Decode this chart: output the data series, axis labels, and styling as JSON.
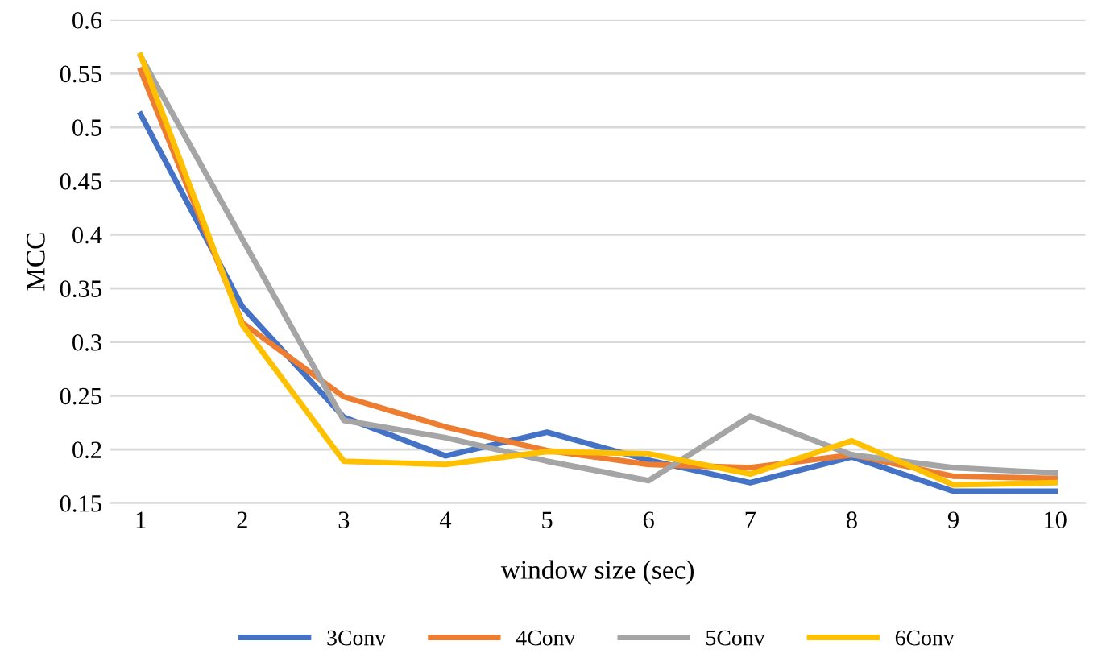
{
  "chart_data": {
    "type": "line",
    "xlabel": "window size (sec)",
    "ylabel": "MCC",
    "categories": [
      "1",
      "2",
      "3",
      "4",
      "5",
      "6",
      "7",
      "8",
      "9",
      "10"
    ],
    "series": [
      {
        "name": "3Conv",
        "color": "#4472c4",
        "values": [
          0.512,
          0.333,
          0.23,
          0.194,
          0.216,
          0.19,
          0.169,
          0.193,
          0.161,
          0.161
        ]
      },
      {
        "name": "4Conv",
        "color": "#ed7d31",
        "values": [
          0.553,
          0.318,
          0.249,
          0.221,
          0.199,
          0.186,
          0.183,
          0.195,
          0.175,
          0.173
        ]
      },
      {
        "name": "5Conv",
        "color": "#a5a5a5",
        "values": [
          0.566,
          0.396,
          0.227,
          0.211,
          0.189,
          0.171,
          0.231,
          0.195,
          0.183,
          0.178
        ]
      },
      {
        "name": "6Conv",
        "color": "#ffc000",
        "values": [
          0.567,
          0.316,
          0.189,
          0.186,
          0.198,
          0.196,
          0.177,
          0.208,
          0.167,
          0.169
        ]
      }
    ],
    "ylim": [
      0.15,
      0.6
    ],
    "yticks": [
      0.15,
      0.2,
      0.25,
      0.3,
      0.35,
      0.4,
      0.45,
      0.5,
      0.55,
      0.6
    ],
    "grid": "y",
    "legend": "bottom",
    "marker": "none",
    "line_style": "solid"
  }
}
